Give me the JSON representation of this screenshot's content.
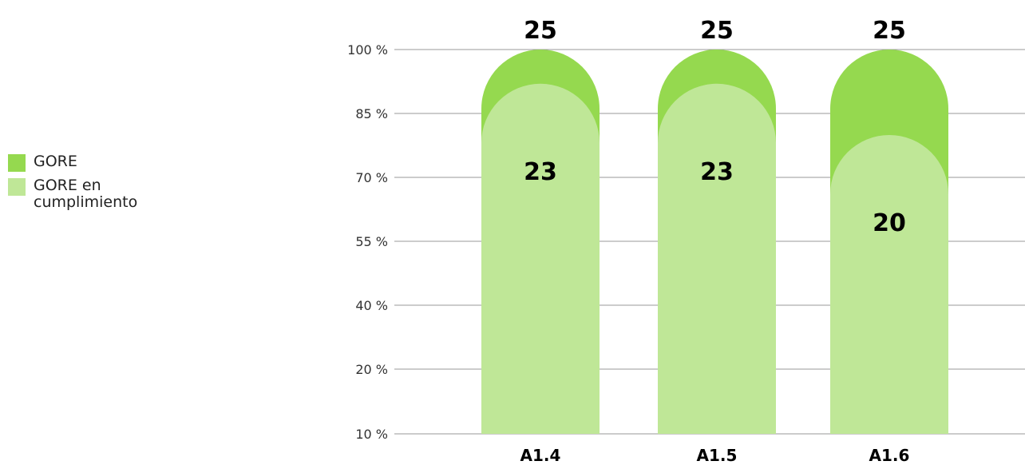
{
  "legend": {
    "items": [
      {
        "label": "GORE",
        "color": "#95d94f"
      },
      {
        "label": "GORE en cumplimiento",
        "color": "#bfe797"
      }
    ]
  },
  "chart_data": {
    "type": "bar",
    "categories": [
      "A1.4",
      "A1.5",
      "A1.6"
    ],
    "series": [
      {
        "name": "GORE",
        "values": [
          25,
          25,
          25
        ],
        "percent": [
          100,
          100,
          100
        ],
        "color": "#95d94f"
      },
      {
        "name": "GORE en cumplimiento",
        "values": [
          23,
          23,
          20
        ],
        "percent": [
          92,
          92,
          80
        ],
        "color": "#bfe797"
      }
    ],
    "yticks": [
      "10 %",
      "20 %",
      "40 %",
      "55 %",
      "70 %",
      "85 %",
      "100 %"
    ],
    "grid": true,
    "legend_position": "left"
  }
}
